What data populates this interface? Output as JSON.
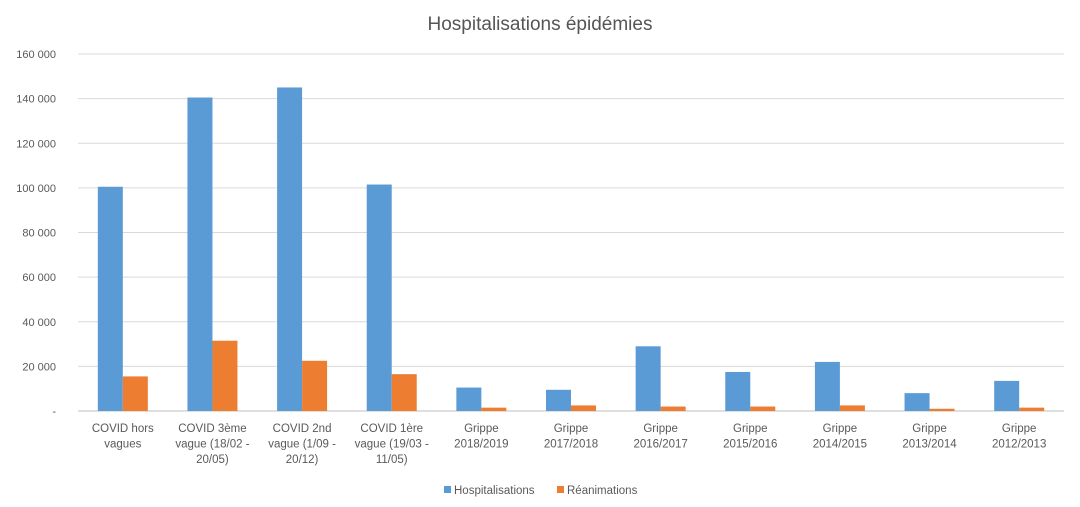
{
  "chart_data": {
    "type": "bar",
    "title": "Hospitalisations épidémies",
    "categories": [
      [
        "COVID hors",
        "vagues"
      ],
      [
        "COVID 3ème",
        "vague (18/02 -",
        "20/05)"
      ],
      [
        "COVID 2nd",
        "vague (1/09 -",
        "20/12)"
      ],
      [
        "COVID 1ère",
        "vague (19/03 -",
        "11/05)"
      ],
      [
        "Grippe",
        "2018/2019"
      ],
      [
        "Grippe",
        "2017/2018"
      ],
      [
        "Grippe",
        "2016/2017"
      ],
      [
        "Grippe",
        "2015/2016"
      ],
      [
        "Grippe",
        "2014/2015"
      ],
      [
        "Grippe",
        "2013/2014"
      ],
      [
        "Grippe",
        "2012/2013"
      ]
    ],
    "series": [
      {
        "name": "Hospitalisations",
        "color": "#5b9bd5",
        "values": [
          100500,
          140500,
          145000,
          101500,
          10500,
          9500,
          29000,
          17500,
          22000,
          8000,
          13500
        ]
      },
      {
        "name": "Réanimations",
        "color": "#ed7d31",
        "values": [
          15500,
          31500,
          22500,
          16500,
          1500,
          2500,
          2000,
          2000,
          2500,
          1000,
          1500
        ]
      }
    ],
    "ylim": [
      0,
      160000
    ],
    "yticks": [
      0,
      20000,
      40000,
      60000,
      80000,
      100000,
      120000,
      140000,
      160000
    ],
    "ytick_labels": [
      "-",
      "20 000",
      "40 000",
      "60 000",
      "80 000",
      "100 000",
      "120 000",
      "140 000",
      "160 000"
    ],
    "grid": true,
    "legend": "bottom"
  }
}
